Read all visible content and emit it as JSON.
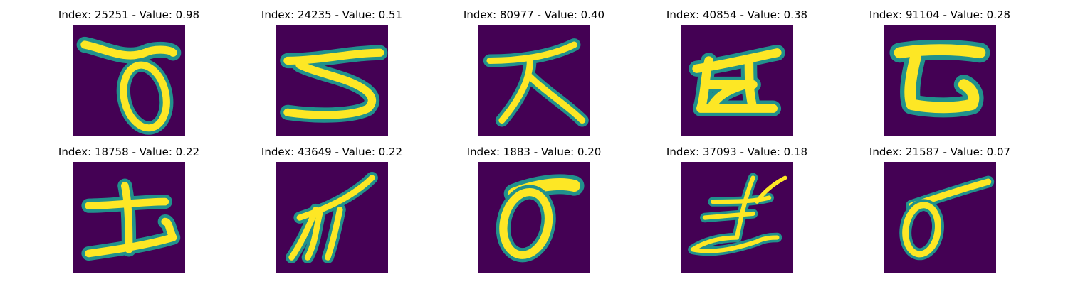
{
  "colors": {
    "background": "#440154",
    "stroke_glow": "#21918c",
    "stroke_core": "#fde725"
  },
  "panels": [
    {
      "label": "Index: 25251 - Value: 0.98",
      "glyph": "tsu"
    },
    {
      "label": "Index: 24235 - Value: 0.51",
      "glyph": "su"
    },
    {
      "label": "Index: 80977 - Value: 0.40",
      "glyph": "da"
    },
    {
      "label": "Index: 40854 - Value: 0.38",
      "glyph": "ha"
    },
    {
      "label": "Index: 91104 - Value: 0.28",
      "glyph": "re"
    },
    {
      "label": "Index: 18758 - Value: 0.22",
      "glyph": "ku"
    },
    {
      "label": "Index: 43649 - Value: 0.22",
      "glyph": "ya"
    },
    {
      "label": "Index: 1883 - Value: 0.20",
      "glyph": "o-loop"
    },
    {
      "label": "Index: 37093 - Value: 0.18",
      "glyph": "ta-scribble"
    },
    {
      "label": "Index: 21587 - Value: 0.07",
      "glyph": "o-small"
    }
  ]
}
